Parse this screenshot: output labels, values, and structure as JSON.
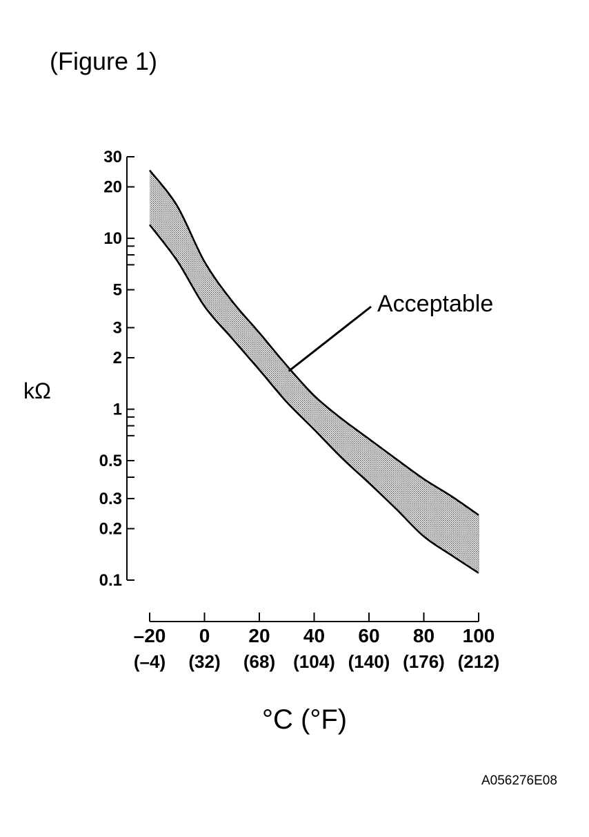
{
  "figure_label": "(Figure 1)",
  "image_code": "A056276E08",
  "chart_data": {
    "type": "area",
    "title": "",
    "xlabel": "°C (°F)",
    "ylabel": "kΩ",
    "y_scale": "log",
    "ylim": [
      0.1,
      30
    ],
    "xlim": [
      -20,
      100
    ],
    "y_ticks": [
      {
        "value": 30,
        "label": "30"
      },
      {
        "value": 20,
        "label": "20"
      },
      {
        "value": 10,
        "label": "10"
      },
      {
        "value": 5,
        "label": "5"
      },
      {
        "value": 3,
        "label": "3"
      },
      {
        "value": 2,
        "label": "2"
      },
      {
        "value": 1,
        "label": "1"
      },
      {
        "value": 0.5,
        "label": "0.5"
      },
      {
        "value": 0.3,
        "label": "0.3"
      },
      {
        "value": 0.2,
        "label": "0.2"
      },
      {
        "value": 0.1,
        "label": "0.1"
      }
    ],
    "y_minor_ticks": [
      9,
      8,
      7,
      0.9,
      0.8,
      0.7,
      0.4
    ],
    "x_ticks": [
      {
        "value": -20,
        "label": "–20",
        "label_f": "(–4)"
      },
      {
        "value": 0,
        "label": "0",
        "label_f": "(32)"
      },
      {
        "value": 20,
        "label": "20",
        "label_f": "(68)"
      },
      {
        "value": 40,
        "label": "40",
        "label_f": "(104)"
      },
      {
        "value": 60,
        "label": "60",
        "label_f": "(140)"
      },
      {
        "value": 80,
        "label": "80",
        "label_f": "(176)"
      },
      {
        "value": 100,
        "label": "100",
        "label_f": "(212)"
      }
    ],
    "series": [
      {
        "x": [
          -20,
          -10,
          0,
          10,
          20,
          30,
          40,
          50,
          60,
          70,
          80,
          90,
          100
        ],
        "y": [
          25,
          15.5,
          7.3,
          4.3,
          2.8,
          1.8,
          1.2,
          0.88,
          0.67,
          0.51,
          0.39,
          0.31,
          0.24
        ]
      },
      {
        "x": [
          -20,
          -10,
          0,
          10,
          20,
          30,
          40,
          50,
          60,
          70,
          80,
          90,
          100
        ],
        "y": [
          12,
          7.4,
          4.0,
          2.6,
          1.7,
          1.1,
          0.76,
          0.52,
          0.37,
          0.26,
          0.18,
          0.14,
          0.11
        ]
      }
    ],
    "annotations": [
      {
        "text": "Acceptable",
        "x": 30,
        "y": 1.8
      }
    ],
    "fill_color": "#c4c4c4",
    "line_color": "#000000"
  }
}
